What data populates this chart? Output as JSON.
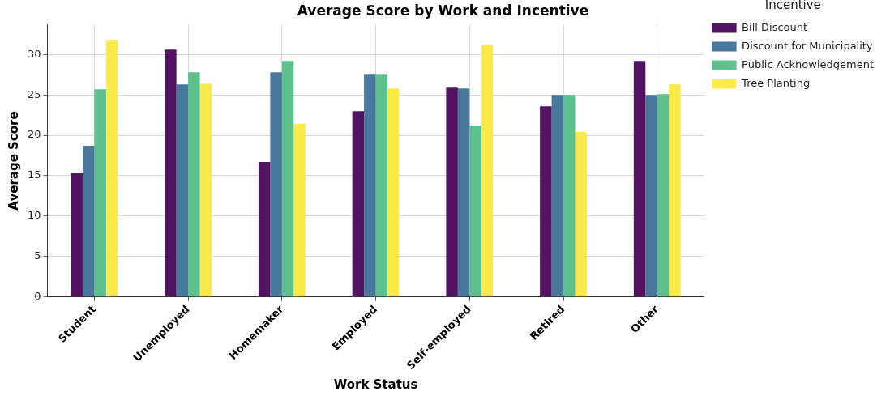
{
  "chart_data": {
    "type": "bar",
    "title": "Average Score by Work and Incentive",
    "xlabel": "Work Status",
    "ylabel": "Average Score",
    "legend_title": "Incentive",
    "categories": [
      "Student",
      "Unemployed",
      "Homemaker",
      "Employed",
      "Self-employed",
      "Retired",
      "Other"
    ],
    "series": [
      {
        "name": "Bill Discount",
        "color": "#521362",
        "values": [
          15.3,
          30.6,
          16.7,
          23.0,
          25.9,
          23.6,
          29.2
        ]
      },
      {
        "name": "Discount for Municipality",
        "color": "#48799d",
        "values": [
          18.7,
          26.3,
          27.8,
          27.5,
          25.8,
          25.0,
          25.0
        ]
      },
      {
        "name": "Public Acknowledgement",
        "color": "#5ec18d",
        "values": [
          25.7,
          27.8,
          29.2,
          27.5,
          21.2,
          25.0,
          25.1
        ]
      },
      {
        "name": "Tree Planting",
        "color": "#fbea48",
        "values": [
          31.7,
          26.4,
          21.4,
          25.8,
          31.2,
          20.4,
          26.3
        ]
      }
    ],
    "ylim": [
      0,
      33.7
    ],
    "yticks": [
      0,
      5,
      10,
      15,
      20,
      25,
      30
    ],
    "grid": true,
    "legend": "right"
  }
}
